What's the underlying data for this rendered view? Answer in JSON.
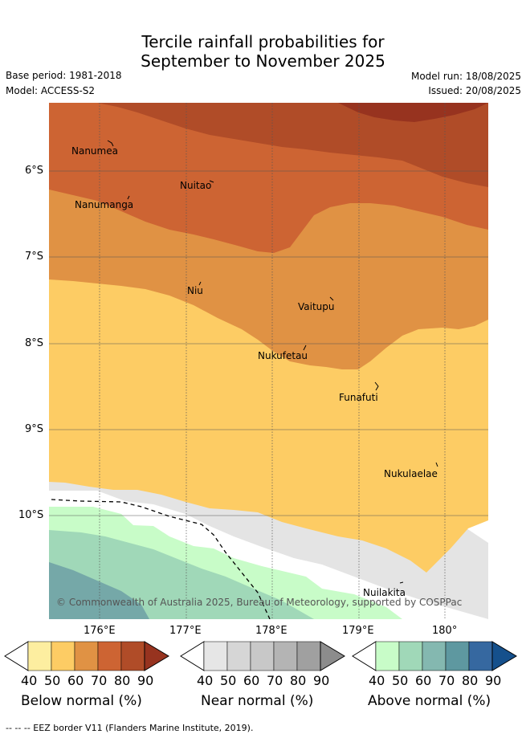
{
  "title_line1": "Tercile rainfall probabilities for",
  "title_line2": "September to November 2025",
  "base_period": "Base period: 1981-2018",
  "model": "Model: ACCESS-S2",
  "model_run": "Model run: 18/08/2025",
  "issued": "Issued: 20/08/2025",
  "copyright": "© Commonwealth of Australia 2025, Bureau of Meteorology, supported by COSPPac",
  "footnote": "-- -- -- EEZ border V11 (Flanders Marine Institute, 2019).",
  "lat_ticks": [
    "6°S",
    "7°S",
    "8°S",
    "9°S",
    "10°S"
  ],
  "lon_ticks": [
    "176°E",
    "177°E",
    "178°E",
    "179°E",
    "180°"
  ],
  "places": [
    "Nanumea",
    "Nuitao",
    "Nanumanga",
    "Niu",
    "Vaitupu",
    "Nukufetau",
    "Funafuti",
    "Nukulaelae",
    "Nuilakita"
  ],
  "colorbars": {
    "below": {
      "title": "Below normal (%)",
      "ticks": [
        "40",
        "50",
        "60",
        "70",
        "80",
        "90"
      ],
      "colors": [
        "#fdeea0",
        "#fdcc64",
        "#e09244",
        "#cd6433",
        "#b04c28",
        "#97331f"
      ]
    },
    "near": {
      "title": "Near normal (%)",
      "ticks": [
        "40",
        "50",
        "60",
        "70",
        "80",
        "90"
      ],
      "colors": [
        "#e6e6e6",
        "#d6d6d6",
        "#c8c8c8",
        "#b4b4b4",
        "#a0a0a0",
        "#8c8c8c"
      ]
    },
    "above": {
      "title": "Above normal (%)",
      "ticks": [
        "40",
        "50",
        "60",
        "70",
        "80",
        "90"
      ],
      "colors": [
        "#c8fcc8",
        "#a0d8b8",
        "#84b8b0",
        "#5e98a0",
        "#3668a0",
        "#15508c"
      ]
    }
  }
}
